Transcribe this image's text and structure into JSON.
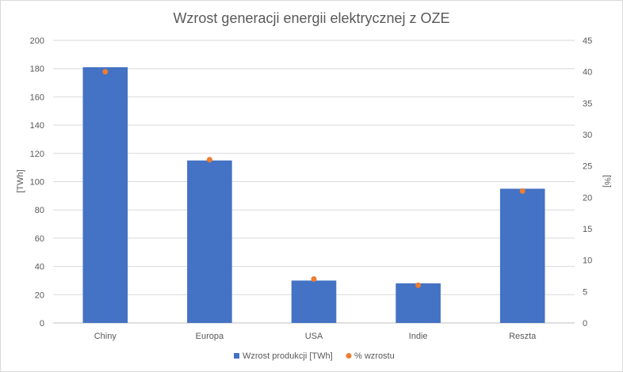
{
  "chart_data": {
    "type": "bar",
    "title": "Wzrost generacji energii elektrycznej z OZE",
    "categories": [
      "Chiny",
      "Europa",
      "USA",
      "Indie",
      "Reszta"
    ],
    "series": [
      {
        "name": "Wzrost produkcji [TWh]",
        "type": "bar",
        "axis": "left",
        "color": "#4472c4",
        "values": [
          181,
          115,
          30,
          28,
          95
        ]
      },
      {
        "name": "% wzrostu",
        "type": "scatter",
        "axis": "right",
        "color": "#ed7d31",
        "values": [
          40,
          26,
          7,
          6,
          21
        ]
      }
    ],
    "ylabel": "[TWh]",
    "ylim": [
      0,
      200
    ],
    "yticks": [
      "0",
      "20",
      "40",
      "60",
      "80",
      "100",
      "120",
      "140",
      "160",
      "180",
      "200"
    ],
    "y2label": "[%]",
    "y2lim": [
      0,
      45
    ],
    "y2ticks": [
      "0",
      "5",
      "10",
      "15",
      "20",
      "25",
      "30",
      "35",
      "40",
      "45"
    ],
    "grid": true,
    "legend_position": "bottom"
  }
}
